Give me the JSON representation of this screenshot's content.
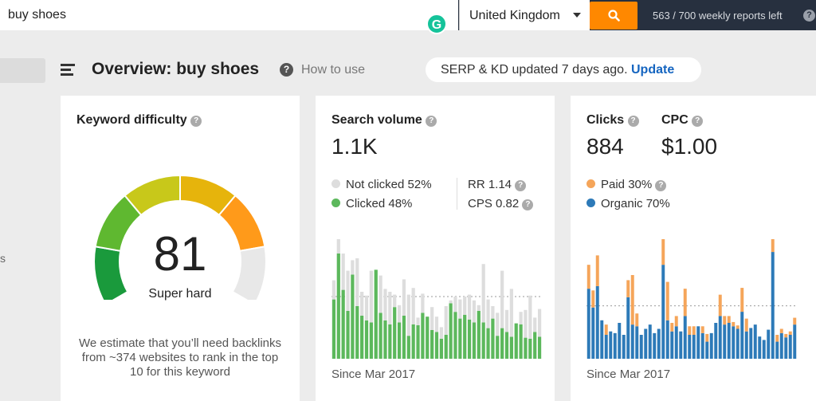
{
  "search": {
    "value": "buy shoes",
    "placeholder": ""
  },
  "grammarly_badge": "G",
  "country": {
    "selected": "United Kingdom"
  },
  "reports": {
    "text": "563 / 700 weekly reports left"
  },
  "sidebar": {
    "partial_text": "s"
  },
  "header": {
    "title": "Overview: buy shoes",
    "how_to_use": "How to use",
    "update_status": "SERP & KD updated 7 days ago.",
    "update_link": "Update"
  },
  "keyword_difficulty": {
    "title": "Keyword difficulty",
    "score": 81,
    "score_text": "81",
    "level": "Super hard",
    "description": "We estimate that you’ll need backlinks from ~374 websites to rank in the top 10 for this keyword",
    "colors": [
      "#1a9a3c",
      "#5fb830",
      "#c8c81a",
      "#e6b40c",
      "#ff9a1a",
      "#e8e8e8"
    ]
  },
  "search_volume": {
    "title": "Search volume",
    "value": "1.1K",
    "not_clicked": "Not clicked 52%",
    "clicked": "Clicked 48%",
    "rr": "RR 1.14",
    "cps": "CPS 0.82",
    "since": "Since Mar 2017",
    "colors": {
      "not_clicked": "#dddddd",
      "clicked": "#5cb85c"
    }
  },
  "clicks": {
    "clicks_title": "Clicks",
    "clicks_value": "884",
    "cpc_title": "CPC",
    "cpc_value": "$1.00",
    "paid": "Paid 30%",
    "organic": "Organic 70%",
    "since": "Since Mar 2017",
    "colors": {
      "paid": "#f5a55a",
      "organic": "#2d7ab8"
    }
  },
  "chart_data": [
    {
      "type": "bar",
      "name": "search-volume-history",
      "series": [
        {
          "name": "Clicked",
          "values": [
            62,
            110,
            72,
            50,
            88,
            55,
            45,
            40,
            38,
            93,
            48,
            40,
            36,
            54,
            38,
            45,
            24,
            36,
            35,
            48,
            44,
            30,
            28,
            21,
            25,
            58,
            49,
            42,
            46,
            41,
            38,
            50,
            38,
            32,
            42,
            24,
            32,
            28,
            23,
            37,
            36,
            22,
            21,
            28,
            23
          ]
        },
        {
          "name": "Not clicked",
          "values": [
            20,
            28,
            38,
            42,
            15,
            50,
            25,
            26,
            54,
            0,
            39,
            33,
            34,
            13,
            18,
            38,
            43,
            38,
            8,
            20,
            0,
            24,
            16,
            12,
            30,
            3,
            16,
            20,
            19,
            26,
            23,
            6,
            61,
            30,
            13,
            24,
            60,
            23,
            50,
            0,
            13,
            29,
            45,
            15,
            29
          ]
        }
      ]
    },
    {
      "type": "bar",
      "name": "clicks-history",
      "series": [
        {
          "name": "Organic",
          "values": [
            82,
            60,
            85,
            45,
            28,
            32,
            30,
            42,
            28,
            72,
            40,
            38,
            28,
            35,
            40,
            30,
            35,
            110,
            45,
            32,
            38,
            32,
            50,
            28,
            28,
            38,
            30,
            20,
            30,
            42,
            50,
            40,
            42,
            38,
            35,
            55,
            32,
            36,
            40,
            26,
            22,
            34,
            125,
            20,
            30,
            25,
            28,
            40
          ]
        },
        {
          "name": "Paid",
          "values": [
            28,
            20,
            36,
            0,
            12,
            0,
            0,
            0,
            0,
            20,
            58,
            15,
            0,
            0,
            0,
            0,
            0,
            30,
            45,
            10,
            12,
            0,
            32,
            10,
            10,
            0,
            8,
            9,
            0,
            0,
            25,
            10,
            8,
            5,
            4,
            28,
            15,
            0,
            0,
            0,
            0,
            0,
            25,
            8,
            5,
            4,
            4,
            8
          ]
        }
      ]
    }
  ]
}
